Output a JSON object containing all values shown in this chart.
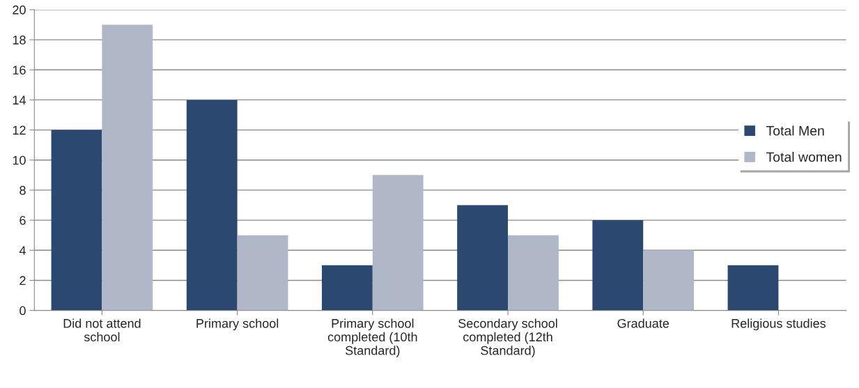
{
  "chart_data": {
    "type": "bar",
    "categories": [
      "Did not attend\nschool",
      "Primary school",
      "Primary school\ncompleted (10th\nStandard)",
      "Secondary school\ncompleted (12th\nStandard)",
      "Graduate",
      "Religious studies"
    ],
    "series": [
      {
        "name": "Total Men",
        "color": "#2b4870",
        "values": [
          12,
          14,
          3,
          7,
          6,
          3
        ]
      },
      {
        "name": "Total women",
        "color": "#b0b7c6",
        "values": [
          19,
          5,
          9,
          5,
          4,
          null
        ]
      }
    ],
    "ylim": [
      0,
      20
    ],
    "yticks": [
      0,
      2,
      4,
      6,
      8,
      10,
      12,
      14,
      16,
      18,
      20
    ],
    "grid": "y",
    "legend": "right"
  }
}
